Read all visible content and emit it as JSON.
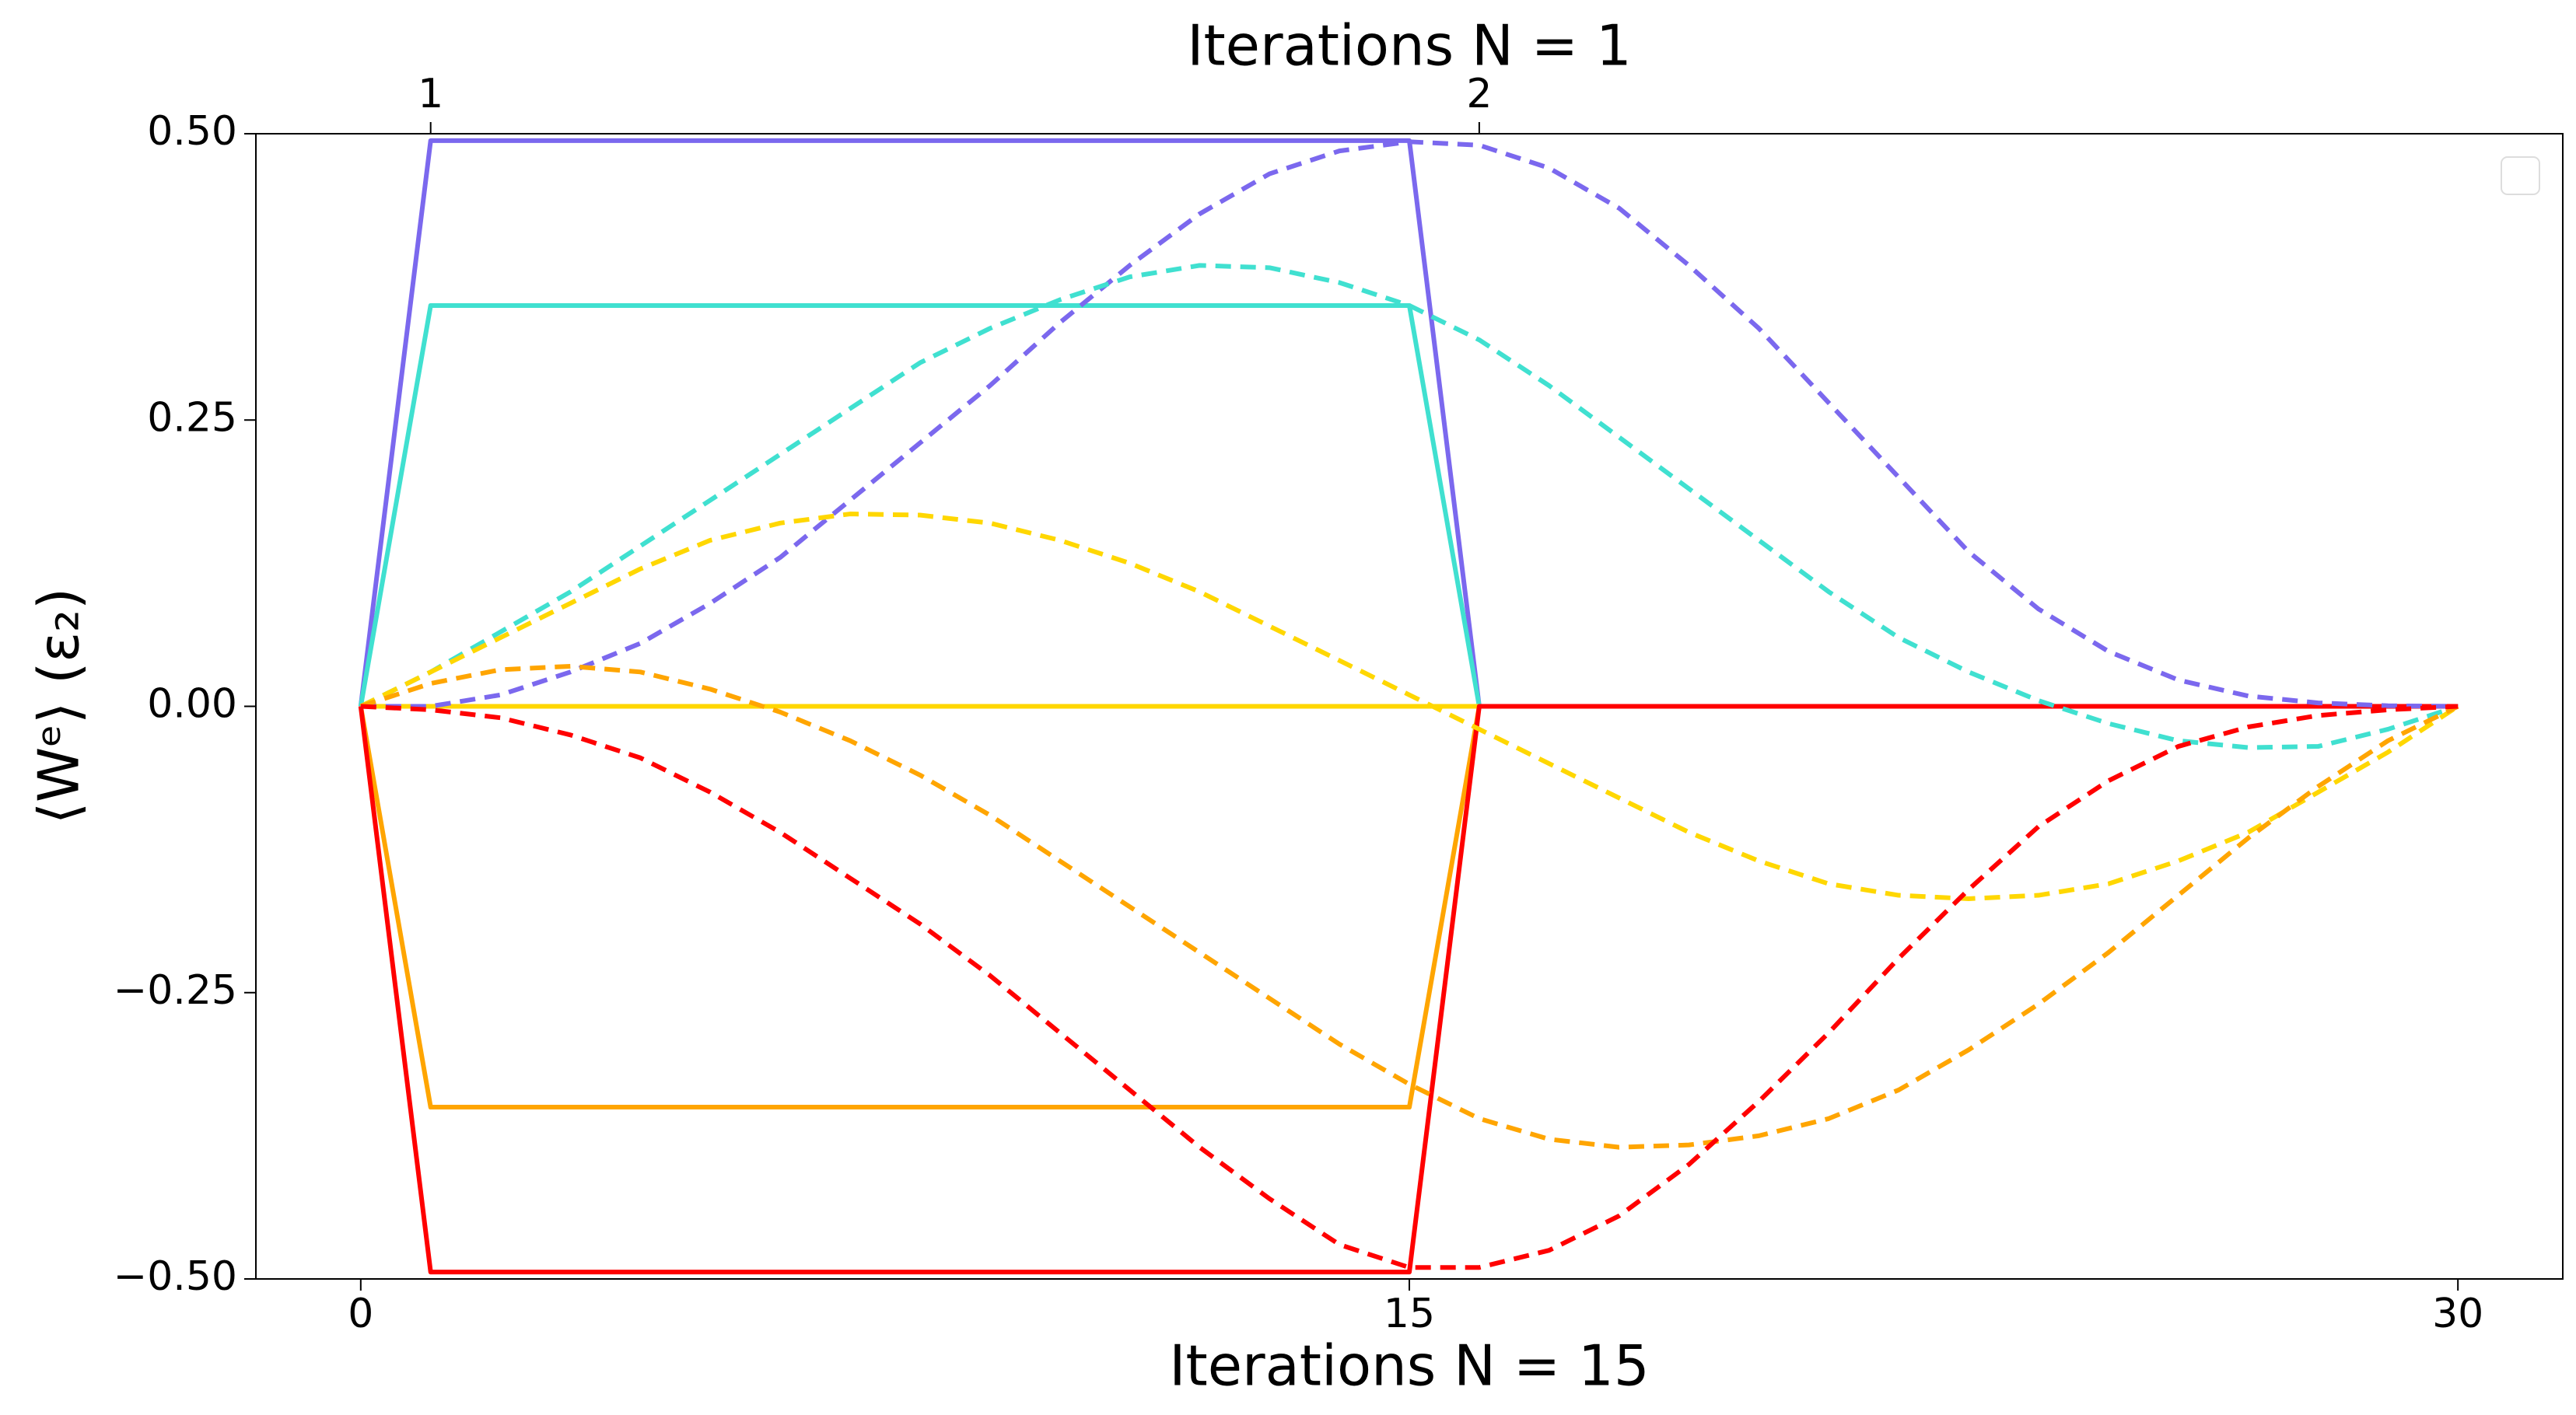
{
  "chart_data": {
    "type": "line",
    "x_label": "Iterations N = 15",
    "x2_label": "Iterations N = 1",
    "y_label": "⟨Wᵉ⟩ (ε₂)",
    "xlim": [
      -1.5,
      31.5
    ],
    "ylim": [
      -0.5,
      0.5
    ],
    "xticks": [
      0,
      15,
      30
    ],
    "x2ticks": [
      1,
      {
        "value": 16,
        "label": "2"
      }
    ],
    "yticks": [
      {
        "value": -0.5,
        "label": "−0.50"
      },
      {
        "value": -0.25,
        "label": "−0.25"
      },
      {
        "value": 0,
        "label": "0.00"
      },
      {
        "value": 0.25,
        "label": "0.25"
      },
      {
        "value": 0.5,
        "label": "0.50"
      }
    ],
    "grid": false,
    "legend": "upper right",
    "series": [
      {
        "color": "#7b68ee",
        "style": "solid",
        "x": [
          0,
          1,
          15,
          16,
          30
        ],
        "values": [
          0,
          0.494,
          0.494,
          0,
          0
        ]
      },
      {
        "color": "#40e0d0",
        "style": "solid",
        "x": [
          0,
          1,
          15,
          16,
          30
        ],
        "values": [
          0,
          0.35,
          0.35,
          0,
          0
        ]
      },
      {
        "color": "#ffd700",
        "style": "solid",
        "x": [
          0,
          1,
          15,
          16,
          30
        ],
        "values": [
          0,
          0,
          0,
          0,
          0
        ]
      },
      {
        "color": "#ffa500",
        "style": "solid",
        "x": [
          0,
          1,
          15,
          16,
          30
        ],
        "values": [
          0,
          -0.35,
          -0.35,
          0,
          0
        ]
      },
      {
        "color": "#ff0000",
        "style": "solid",
        "x": [
          0,
          1,
          15,
          16,
          30
        ],
        "values": [
          0,
          -0.494,
          -0.494,
          0,
          0
        ]
      },
      {
        "color": "#7b68ee",
        "style": "dashed",
        "x": [
          0,
          1,
          2,
          3,
          4,
          5,
          6,
          7,
          8,
          9,
          10,
          11,
          12,
          13,
          14,
          15,
          16,
          17,
          18,
          19,
          20,
          21,
          22,
          23,
          24,
          25,
          26,
          27,
          28,
          29,
          30
        ],
        "values": [
          0,
          0,
          0.01,
          0.03,
          0.055,
          0.09,
          0.13,
          0.18,
          0.23,
          0.28,
          0.335,
          0.385,
          0.43,
          0.465,
          0.485,
          0.493,
          0.49,
          0.47,
          0.435,
          0.385,
          0.33,
          0.265,
          0.2,
          0.135,
          0.085,
          0.048,
          0.023,
          0.009,
          0.003,
          0.0005,
          0
        ]
      },
      {
        "color": "#40e0d0",
        "style": "dashed",
        "x": [
          0,
          1,
          2,
          3,
          4,
          5,
          6,
          7,
          8,
          9,
          10,
          11,
          12,
          13,
          14,
          15,
          16,
          17,
          18,
          19,
          20,
          21,
          22,
          23,
          24,
          25,
          26,
          27,
          28,
          29,
          30
        ],
        "values": [
          0,
          0.03,
          0.065,
          0.1,
          0.14,
          0.18,
          0.22,
          0.26,
          0.3,
          0.33,
          0.355,
          0.375,
          0.385,
          0.383,
          0.37,
          0.35,
          0.32,
          0.28,
          0.235,
          0.19,
          0.145,
          0.1,
          0.06,
          0.03,
          0.005,
          -0.015,
          -0.03,
          -0.036,
          -0.035,
          -0.02,
          0
        ]
      },
      {
        "color": "#ffd700",
        "style": "dashed",
        "x": [
          0,
          1,
          2,
          3,
          4,
          5,
          6,
          7,
          8,
          9,
          10,
          11,
          12,
          13,
          14,
          15,
          16,
          17,
          18,
          19,
          20,
          21,
          22,
          23,
          24,
          25,
          26,
          27,
          28,
          29,
          30
        ],
        "values": [
          0,
          0.03,
          0.06,
          0.09,
          0.12,
          0.145,
          0.16,
          0.168,
          0.167,
          0.16,
          0.145,
          0.125,
          0.1,
          0.07,
          0.04,
          0.01,
          -0.02,
          -0.05,
          -0.08,
          -0.11,
          -0.135,
          -0.155,
          -0.165,
          -0.168,
          -0.165,
          -0.155,
          -0.135,
          -0.11,
          -0.075,
          -0.04,
          0
        ]
      },
      {
        "color": "#ffa500",
        "style": "dashed",
        "x": [
          0,
          1,
          2,
          3,
          4,
          5,
          6,
          7,
          8,
          9,
          10,
          11,
          12,
          13,
          14,
          15,
          16,
          17,
          18,
          19,
          20,
          21,
          22,
          23,
          24,
          25,
          26,
          27,
          28,
          29,
          30
        ],
        "values": [
          0,
          0.02,
          0.032,
          0.035,
          0.03,
          0.015,
          -0.005,
          -0.03,
          -0.06,
          -0.095,
          -0.135,
          -0.175,
          -0.215,
          -0.255,
          -0.295,
          -0.33,
          -0.36,
          -0.378,
          -0.385,
          -0.383,
          -0.375,
          -0.36,
          -0.335,
          -0.3,
          -0.26,
          -0.215,
          -0.165,
          -0.115,
          -0.07,
          -0.03,
          0
        ]
      },
      {
        "color": "#ff0000",
        "style": "dashed",
        "x": [
          0,
          1,
          2,
          3,
          4,
          5,
          6,
          7,
          8,
          9,
          10,
          11,
          12,
          13,
          14,
          15,
          16,
          17,
          18,
          19,
          20,
          21,
          22,
          23,
          24,
          25,
          26,
          27,
          28,
          29,
          30
        ],
        "values": [
          0,
          -0.003,
          -0.01,
          -0.025,
          -0.045,
          -0.075,
          -0.11,
          -0.15,
          -0.19,
          -0.235,
          -0.285,
          -0.335,
          -0.385,
          -0.43,
          -0.47,
          -0.49,
          -0.49,
          -0.475,
          -0.445,
          -0.4,
          -0.345,
          -0.285,
          -0.22,
          -0.16,
          -0.105,
          -0.065,
          -0.035,
          -0.018,
          -0.008,
          -0.003,
          0
        ]
      }
    ]
  }
}
